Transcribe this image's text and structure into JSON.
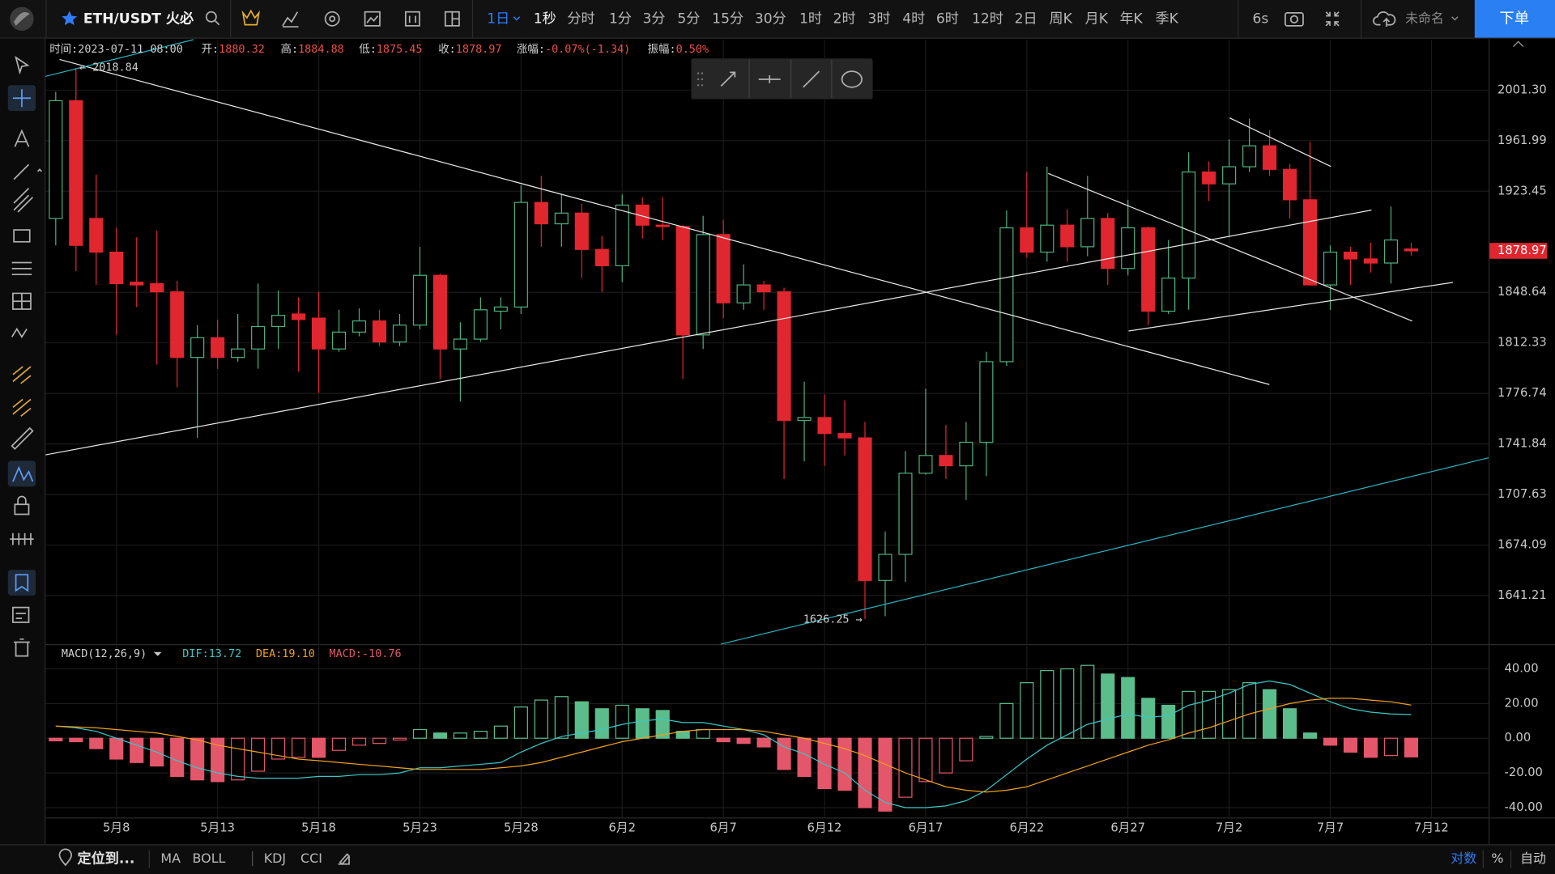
{
  "toolbar": {
    "symbol": "ETH/USDT 火必",
    "period": "1日",
    "intervals": [
      "1秒",
      "分时",
      "1分",
      "3分",
      "5分",
      "15分",
      "30分",
      "1时",
      "2时",
      "3时",
      "4时",
      "6时",
      "12时",
      "2日",
      "周K",
      "月K",
      "年K",
      "季K"
    ],
    "refresh": "6s",
    "layout_name": "未命名",
    "order_button": "下单"
  },
  "info_bar": [
    {
      "label": "时间:",
      "value": "2023-07-11 08:00"
    },
    {
      "label": "开:",
      "value": "1880.32"
    },
    {
      "label": "高:",
      "value": "1884.88"
    },
    {
      "label": "低:",
      "value": "1875.45"
    },
    {
      "label": "收:",
      "value": "1878.97"
    },
    {
      "label": "涨幅:",
      "value": "-0.07%(-1.34)"
    },
    {
      "label": "振幅:",
      "value": "0.50%"
    }
  ],
  "chart_data": [
    {
      "type": "candlestick",
      "open": [
        1903,
        1993,
        1903,
        1878,
        1856,
        1855,
        1849,
        1802,
        1816,
        1802,
        1808,
        1824,
        1833,
        1830,
        1808,
        1820,
        1828,
        1813,
        1825,
        1861,
        1808,
        1815,
        1835,
        1838,
        1915,
        1899,
        1907,
        1880,
        1868,
        1913,
        1898,
        1897,
        1818,
        1891,
        1841,
        1854,
        1849,
        1758,
        1760,
        1749,
        1746,
        1651,
        1668,
        1722,
        1734,
        1727,
        1743,
        1799,
        1896,
        1878,
        1898,
        1882,
        1903,
        1866,
        1896,
        1835,
        1859,
        1938,
        1929,
        1942,
        1958,
        1940,
        1917,
        1854,
        1878,
        1873,
        1870,
        1880.32
      ],
      "high": [
        2000,
        2018.84,
        1936,
        1896,
        1889,
        1894,
        1857,
        1825,
        1829,
        1833,
        1855,
        1850,
        1845,
        1849,
        1836,
        1837,
        1836,
        1833,
        1882,
        1862,
        1827,
        1845,
        1845,
        1928,
        1935,
        1921,
        1914,
        1890,
        1921,
        1919,
        1919,
        1898,
        1905,
        1902,
        1869,
        1857,
        1852,
        1785,
        1776,
        1772,
        1757,
        1683,
        1737,
        1780,
        1755,
        1757,
        1806,
        1909,
        1938,
        1942,
        1910,
        1935,
        1907,
        1917,
        1897,
        1887,
        1953,
        1946,
        1963,
        1979,
        1970,
        1944,
        1961,
        1883,
        1882,
        1885,
        1912,
        1884.88
      ],
      "low": [
        1883,
        1864,
        1854,
        1818,
        1838,
        1797,
        1781,
        1746,
        1794,
        1799,
        1794,
        1808,
        1792,
        1777,
        1806,
        1817,
        1810,
        1810,
        1822,
        1787,
        1771,
        1813,
        1822,
        1833,
        1882,
        1882,
        1859,
        1849,
        1856,
        1888,
        1887,
        1787,
        1808,
        1830,
        1836,
        1836,
        1718,
        1730,
        1727,
        1734,
        1626.25,
        1628,
        1650,
        1721,
        1718,
        1704,
        1720,
        1796,
        1874,
        1871,
        1871,
        1875,
        1854,
        1861,
        1825,
        1833,
        1836,
        1916,
        1889,
        1938,
        1935,
        1903,
        1854,
        1836,
        1854,
        1863,
        1855,
        1875.45
      ],
      "close": [
        1993,
        1883,
        1878,
        1855,
        1854,
        1849,
        1802,
        1816,
        1802,
        1808,
        1824,
        1832,
        1829,
        1808,
        1820,
        1828,
        1813,
        1825,
        1861,
        1808,
        1815,
        1836,
        1838,
        1915,
        1899,
        1907,
        1880,
        1868,
        1913,
        1898,
        1897,
        1818,
        1891,
        1841,
        1854,
        1849,
        1758,
        1760,
        1749,
        1746,
        1651,
        1668,
        1722,
        1734,
        1727,
        1743,
        1799,
        1896,
        1878,
        1898,
        1882,
        1903,
        1866,
        1896,
        1835,
        1859,
        1938,
        1929,
        1942,
        1958,
        1940,
        1917,
        1854,
        1878,
        1873,
        1870,
        1887,
        1878.97
      ],
      "up_color": "#4caf7f",
      "down_color": "#e0262f",
      "log_scale": true,
      "grid": true,
      "ylim": [
        1610.3,
        2041.3
      ],
      "yticks": [
        {
          "value": 2001.3,
          "label": "2001.30"
        },
        1961.99,
        1923.45,
        1848.64,
        1812.33,
        1776.74,
        1741.84,
        1707.63,
        1674.09,
        1641.21
      ],
      "xticks": [
        {
          "value": 3,
          "label": "5月8"
        },
        {
          "value": 8,
          "label": "5月13"
        },
        {
          "value": 13,
          "label": "5月18"
        },
        {
          "value": 18,
          "label": "5月23"
        },
        {
          "value": 23,
          "label": "5月28"
        },
        {
          "value": 28,
          "label": "6月2"
        },
        {
          "value": 33,
          "label": "6月7"
        },
        {
          "value": 38,
          "label": "6月12"
        },
        {
          "value": 43,
          "label": "6月17"
        },
        {
          "value": 48,
          "label": "6月22"
        },
        {
          "value": 53,
          "label": "6月27"
        },
        {
          "value": 58,
          "label": "7月2"
        },
        {
          "value": 63,
          "label": "7月7"
        },
        {
          "value": 68,
          "label": "7月12"
        }
      ],
      "annotations": [
        {
          "text": "← 2018.84"
        },
        {
          "text": "1626.25 →"
        }
      ]
    },
    {
      "type": "macd",
      "title": "MACD(12,26,9)",
      "series": [
        {
          "name": "DIF",
          "label": "DIF:13.72",
          "color": "#3cc6c6",
          "values": [
            7,
            6,
            4,
            0,
            -4,
            -8,
            -13,
            -17,
            -20,
            -22,
            -23,
            -23,
            -23,
            -22,
            -22,
            -21,
            -21,
            -20,
            -17,
            -17,
            -16,
            -15,
            -14,
            -8,
            -3,
            1,
            3,
            5,
            8,
            10,
            11,
            9,
            9,
            7,
            5,
            2,
            -5,
            -9,
            -15,
            -20,
            -30,
            -37,
            -40,
            -40,
            -39,
            -36,
            -30,
            -21,
            -12,
            -4,
            2,
            8,
            11,
            14,
            12,
            13,
            19,
            22,
            26,
            31,
            33,
            31,
            26,
            21,
            17,
            15,
            14,
            13.72
          ]
        },
        {
          "name": "DEA",
          "label": "DEA:19.10",
          "color": "#f0a01e",
          "values": [
            7,
            6.5,
            6,
            5,
            4,
            3,
            1,
            -1,
            -4,
            -6,
            -8,
            -10,
            -12,
            -13,
            -14,
            -15,
            -16,
            -17,
            -18,
            -18,
            -18,
            -18,
            -17,
            -16,
            -14,
            -11,
            -8,
            -5,
            -2,
            0,
            2,
            4,
            5,
            5,
            5,
            4,
            2,
            0,
            -3,
            -6,
            -10,
            -15,
            -20,
            -24,
            -28,
            -30,
            -31,
            -30,
            -28,
            -24,
            -20,
            -16,
            -12,
            -8,
            -4,
            -1,
            3,
            6,
            10,
            14,
            17,
            20,
            22,
            23,
            23,
            22,
            21,
            19.1
          ]
        }
      ],
      "histogram": {
        "name": "MACD",
        "label": "MACD:-10.76",
        "up_color": "#5cbd8c",
        "down_color": "#e4566a",
        "values": [
          -1.5,
          -2,
          -6,
          -12,
          -14,
          -16,
          -22,
          -24,
          -25,
          -24,
          -19,
          -12,
          -11,
          -11,
          -7,
          -4,
          -3,
          -1,
          5,
          3,
          3,
          4,
          7,
          18,
          22,
          24,
          21,
          17,
          19,
          17,
          16,
          4,
          5,
          -2,
          -3,
          -5,
          -18,
          -22,
          -29,
          -30,
          -40,
          -42,
          -34,
          -25,
          -20,
          -13,
          1,
          20,
          32,
          39,
          40,
          42,
          37,
          35,
          23,
          19,
          27,
          27,
          28,
          32,
          28,
          17,
          3,
          -4,
          -8,
          -11,
          -10,
          -10.76
        ]
      },
      "ylim": [
        -45.7,
        51.4
      ],
      "yticks": [
        {
          "value": 40,
          "label": "40.00"
        },
        {
          "value": 20,
          "label": "20.00"
        },
        {
          "value": 0,
          "label": "0.00"
        },
        {
          "value": -20,
          "label": "-20.00"
        },
        {
          "value": -40,
          "label": "-40.00"
        }
      ]
    }
  ],
  "bottom_bar": {
    "locate": "定位到...",
    "indicators": [
      "MA",
      "BOLL",
      "KDJ",
      "CCI"
    ],
    "scale_options": [
      "对数",
      "%",
      "自动"
    ]
  }
}
